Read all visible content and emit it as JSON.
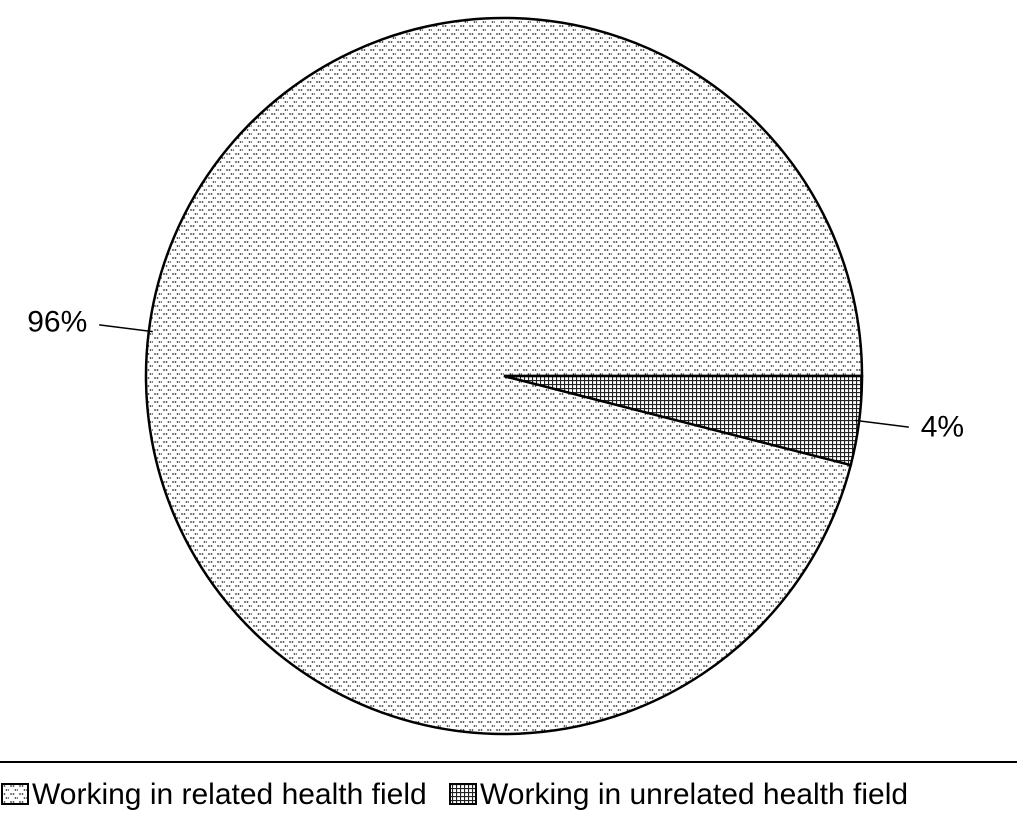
{
  "chart_data": {
    "type": "pie",
    "categories": [
      "Working in related health field",
      "Working in unrelated health field"
    ],
    "values": [
      96,
      4
    ],
    "value_labels": [
      "96%",
      "4%"
    ],
    "patterns": [
      "dots",
      "grid"
    ],
    "start_angle": 0,
    "direction": "counterclockwise",
    "legend": "bottom"
  }
}
